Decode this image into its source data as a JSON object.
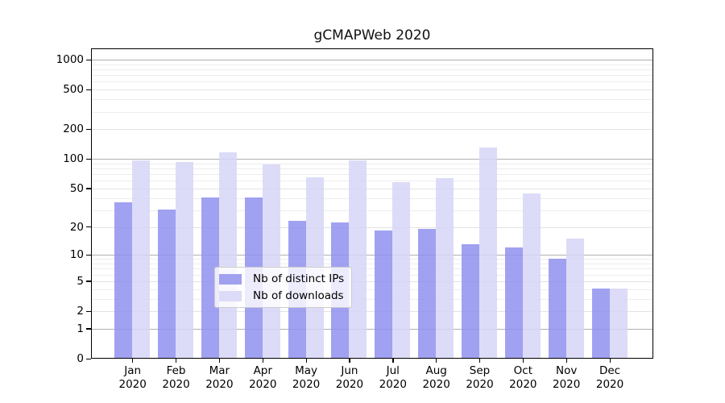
{
  "chart_data": {
    "type": "bar",
    "title": "gCMAPWeb 2020",
    "categories": [
      "Jan",
      "Feb",
      "Mar",
      "Apr",
      "May",
      "Jun",
      "Jul",
      "Aug",
      "Sep",
      "Oct",
      "Nov",
      "Dec"
    ],
    "year_label": "2020",
    "series": [
      {
        "name": "Nb of distinct IPs",
        "color": "#a1a1f0",
        "fill": "rgba(145,145,238,0.85)",
        "values": [
          36,
          30,
          40,
          40,
          23,
          22,
          18,
          19,
          13,
          12,
          9,
          4
        ]
      },
      {
        "name": "Nb of downloads",
        "color": "#dcdcf8",
        "fill": "rgba(214,214,247,0.85)",
        "values": [
          95,
          93,
          116,
          88,
          64,
          95,
          58,
          63,
          130,
          44,
          15,
          4
        ]
      }
    ],
    "xlabel": "",
    "ylabel": "",
    "yscale": "log1p",
    "ylim": [
      0,
      1300
    ],
    "y_ticks": [
      0,
      1,
      2,
      5,
      10,
      20,
      50,
      100,
      200,
      500,
      1000
    ],
    "y_tick_labels": [
      "0",
      "1",
      "2",
      "5",
      "10",
      "20",
      "50",
      "100",
      "200",
      "500",
      "1000"
    ],
    "grid": true,
    "decade_gridlines": [
      1,
      10,
      100,
      1000
    ],
    "minor_gridlines": [
      3,
      4,
      6,
      7,
      8,
      9,
      30,
      40,
      60,
      70,
      80,
      90,
      300,
      400,
      600,
      700,
      800,
      900
    ],
    "legend_position": "lower center"
  },
  "colors": {
    "background": "#ffffff",
    "spine": "#000000",
    "grid_decade": "#b0b0b0",
    "grid_minor": "#ededed",
    "legend_border": "#cccccc"
  }
}
